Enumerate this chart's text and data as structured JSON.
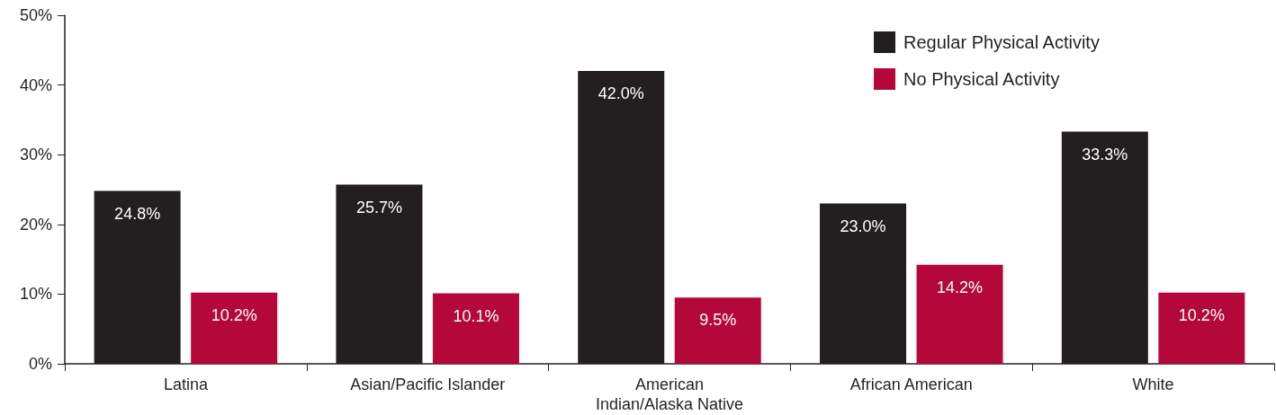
{
  "chart_data": {
    "type": "bar",
    "categories": [
      "Latina",
      "Asian/Pacific Islander",
      "American\nIndian/Alaska Native",
      "African American",
      "White"
    ],
    "series": [
      {
        "name": "Regular Physical Activity",
        "color": "#231f20",
        "values": [
          24.8,
          25.7,
          42.0,
          23.0,
          33.3
        ],
        "value_labels": [
          "24.8%",
          "25.7%",
          "42.0%",
          "23.0%",
          "33.3%"
        ]
      },
      {
        "name": "No Physical Activity",
        "color": "#b5083a",
        "values": [
          10.2,
          10.1,
          9.5,
          14.2,
          10.2
        ],
        "value_labels": [
          "10.2%",
          "10.1%",
          "9.5%",
          "14.2%",
          "10.2%"
        ]
      }
    ],
    "ylim": [
      0,
      50
    ],
    "yticks": [
      {
        "value": 0,
        "label": "0%"
      },
      {
        "value": 10,
        "label": "10%"
      },
      {
        "value": 20,
        "label": "20%"
      },
      {
        "value": 30,
        "label": "30%"
      },
      {
        "value": 40,
        "label": "40%"
      },
      {
        "value": 50,
        "label": "50%"
      }
    ],
    "grid": false,
    "legend": "top right"
  }
}
